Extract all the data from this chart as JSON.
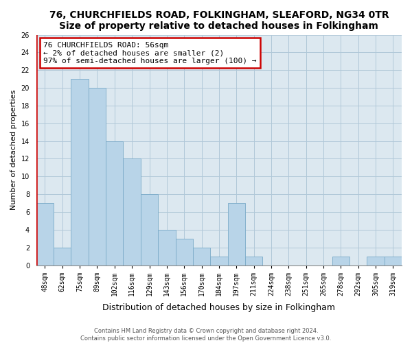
{
  "title": "76, CHURCHFIELDS ROAD, FOLKINGHAM, SLEAFORD, NG34 0TR",
  "subtitle": "Size of property relative to detached houses in Folkingham",
  "xlabel": "Distribution of detached houses by size in Folkingham",
  "ylabel": "Number of detached properties",
  "bar_labels": [
    "48sqm",
    "62sqm",
    "75sqm",
    "89sqm",
    "102sqm",
    "116sqm",
    "129sqm",
    "143sqm",
    "156sqm",
    "170sqm",
    "184sqm",
    "197sqm",
    "211sqm",
    "224sqm",
    "238sqm",
    "251sqm",
    "265sqm",
    "278sqm",
    "292sqm",
    "305sqm",
    "319sqm"
  ],
  "bar_values": [
    7,
    2,
    21,
    20,
    14,
    12,
    8,
    4,
    3,
    2,
    1,
    7,
    1,
    0,
    0,
    0,
    0,
    1,
    0,
    1,
    1
  ],
  "bar_color": "#b8d4e8",
  "bar_edge_color": "#7aaac8",
  "ylim": [
    0,
    26
  ],
  "yticks": [
    0,
    2,
    4,
    6,
    8,
    10,
    12,
    14,
    16,
    18,
    20,
    22,
    24,
    26
  ],
  "annotation_title": "76 CHURCHFIELDS ROAD: 56sqm",
  "annotation_line1": "← 2% of detached houses are smaller (2)",
  "annotation_line2": "97% of semi-detached houses are larger (100) →",
  "annotation_box_facecolor": "#ffffff",
  "annotation_box_edgecolor": "#cc0000",
  "red_line_color": "#cc0000",
  "footer1": "Contains HM Land Registry data © Crown copyright and database right 2024.",
  "footer2": "Contains public sector information licensed under the Open Government Licence v3.0.",
  "background_color": "#ffffff",
  "plot_bg_color": "#dce8f0",
  "grid_color": "#b0c8d8",
  "title_fontsize": 10,
  "subtitle_fontsize": 9,
  "xlabel_fontsize": 9,
  "ylabel_fontsize": 8,
  "tick_fontsize": 7,
  "annotation_fontsize": 8,
  "footer_fontsize": 6
}
